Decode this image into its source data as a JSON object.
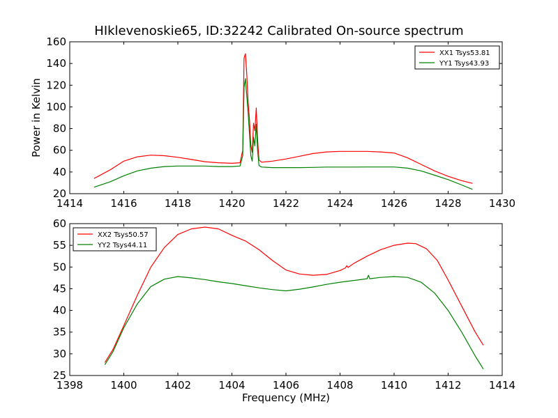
{
  "figure_title": "HIklevenoskie65, ID:32242 Calibrated On-source spectrum",
  "colors": {
    "red": "#ff0000",
    "green": "#008000"
  },
  "chart_data": [
    {
      "type": "line",
      "title": "",
      "xlabel": "",
      "ylabel": "Power in Kelvin",
      "xlim": [
        1414,
        1430
      ],
      "ylim": [
        20,
        160
      ],
      "xticks": [
        "1414",
        "1416",
        "1418",
        "1420",
        "1422",
        "1424",
        "1426",
        "1428",
        "1430"
      ],
      "yticks": [
        "20",
        "40",
        "60",
        "80",
        "100",
        "120",
        "140",
        "160"
      ],
      "grid": false,
      "legend_position": "top-right",
      "series": [
        {
          "name": "XX1 Tsys53.81",
          "color": "#ff0000",
          "x": [
            1414.9,
            1415.5,
            1416.0,
            1416.5,
            1417.0,
            1417.5,
            1418.0,
            1418.5,
            1419.0,
            1419.5,
            1420.0,
            1420.3,
            1420.4,
            1420.45,
            1420.5,
            1420.55,
            1420.6,
            1420.65,
            1420.7,
            1420.75,
            1420.8,
            1420.85,
            1420.9,
            1420.95,
            1421.0,
            1421.1,
            1421.5,
            1422.0,
            1422.5,
            1423.0,
            1423.5,
            1424.0,
            1424.5,
            1425.0,
            1425.5,
            1426.0,
            1426.5,
            1427.0,
            1427.5,
            1428.0,
            1428.5,
            1428.9
          ],
          "y": [
            34,
            42,
            50,
            54,
            55.5,
            55,
            53.5,
            51.5,
            49.5,
            48.5,
            48,
            48.5,
            60,
            145,
            149,
            130,
            105,
            88,
            65,
            58,
            85,
            78,
            99,
            70,
            51,
            49,
            50,
            52,
            54.5,
            57,
            58.5,
            59,
            59,
            59,
            58.5,
            57.5,
            53,
            47,
            41,
            36,
            32,
            29.5
          ]
        },
        {
          "name": "YY1 Tsys43.93",
          "color": "#008000",
          "x": [
            1414.9,
            1415.5,
            1416.0,
            1416.5,
            1417.0,
            1417.5,
            1418.0,
            1418.5,
            1419.0,
            1419.5,
            1420.0,
            1420.3,
            1420.4,
            1420.45,
            1420.5,
            1420.55,
            1420.6,
            1420.65,
            1420.7,
            1420.75,
            1420.8,
            1420.85,
            1420.9,
            1420.95,
            1421.0,
            1421.1,
            1421.5,
            1422.0,
            1422.5,
            1423.0,
            1423.5,
            1424.0,
            1424.5,
            1425.0,
            1425.5,
            1426.0,
            1426.5,
            1427.0,
            1427.5,
            1428.0,
            1428.5,
            1428.9
          ],
          "y": [
            26,
            31,
            36.5,
            41,
            43.5,
            45,
            45.5,
            45.5,
            45.5,
            45,
            45,
            45.5,
            55,
            118,
            126,
            110,
            95,
            75,
            55,
            50,
            72,
            64,
            84,
            60,
            46,
            44.5,
            44,
            44,
            44,
            44.2,
            44.5,
            44.5,
            44.5,
            44.6,
            44.6,
            44.6,
            43.5,
            41,
            37,
            33,
            28,
            24
          ]
        }
      ]
    },
    {
      "type": "line",
      "title": "",
      "xlabel": "Frequency (MHz)",
      "ylabel": "",
      "xlim": [
        1398,
        1414
      ],
      "ylim": [
        25,
        60
      ],
      "xticks": [
        "1398",
        "1400",
        "1402",
        "1404",
        "1406",
        "1408",
        "1410",
        "1412",
        "1414"
      ],
      "yticks": [
        "25",
        "30",
        "35",
        "40",
        "45",
        "50",
        "55",
        "60"
      ],
      "grid": false,
      "legend_position": "top-left",
      "series": [
        {
          "name": "XX2 Tsys50.57",
          "color": "#ff0000",
          "x": [
            1399.3,
            1399.6,
            1400.0,
            1400.5,
            1401.0,
            1401.5,
            1402.0,
            1402.5,
            1403.0,
            1403.5,
            1404.0,
            1404.5,
            1405.0,
            1405.5,
            1406.0,
            1406.5,
            1407.0,
            1407.5,
            1408.0,
            1408.2,
            1408.25,
            1408.3,
            1408.5,
            1409.0,
            1409.5,
            1410.0,
            1410.5,
            1410.8,
            1411.2,
            1411.6,
            1412.0,
            1412.5,
            1413.0,
            1413.3
          ],
          "y": [
            28,
            31,
            36.5,
            43.5,
            50,
            54.5,
            57.5,
            58.8,
            59.2,
            58.8,
            57.3,
            56,
            54,
            51.5,
            49.3,
            48.4,
            48.1,
            48.3,
            49.2,
            49.8,
            50.3,
            49.9,
            50.8,
            52.5,
            54,
            55,
            55.5,
            55.4,
            54.2,
            51.5,
            47,
            41,
            35,
            32
          ]
        },
        {
          "name": "YY2 Tsys44.11",
          "color": "#008000",
          "x": [
            1399.3,
            1399.6,
            1400.0,
            1400.5,
            1401.0,
            1401.5,
            1402.0,
            1402.5,
            1403.0,
            1403.5,
            1404.0,
            1404.5,
            1405.0,
            1405.5,
            1406.0,
            1406.5,
            1407.0,
            1407.5,
            1408.0,
            1408.5,
            1409.0,
            1409.05,
            1409.1,
            1409.5,
            1410.0,
            1410.5,
            1411.0,
            1411.5,
            1412.0,
            1412.5,
            1413.0,
            1413.3
          ],
          "y": [
            27.5,
            30.5,
            36,
            41.5,
            45.5,
            47.2,
            47.8,
            47.5,
            47.1,
            46.6,
            46.2,
            45.7,
            45.2,
            44.8,
            44.5,
            44.9,
            45.4,
            46,
            46.5,
            46.9,
            47.3,
            48.1,
            47.3,
            47.6,
            47.8,
            47.6,
            46.5,
            44,
            40,
            35,
            29.5,
            26.5
          ]
        }
      ]
    }
  ]
}
